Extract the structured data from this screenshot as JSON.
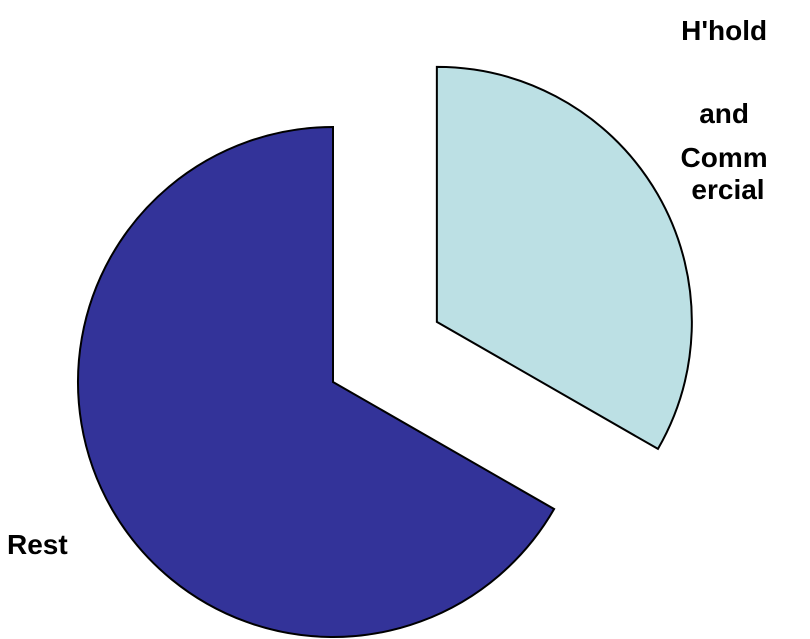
{
  "chart_data": {
    "type": "pie",
    "title": "",
    "legend": "none",
    "slices": [
      {
        "label_lines": [
          "H'hold",
          "and",
          "Comm",
          "ercial"
        ],
        "value": 33.3,
        "color": "#BCE0E4",
        "exploded": true
      },
      {
        "label_lines": [
          "Rest"
        ],
        "value": 66.7,
        "color": "#333399",
        "exploded": false
      }
    ]
  }
}
